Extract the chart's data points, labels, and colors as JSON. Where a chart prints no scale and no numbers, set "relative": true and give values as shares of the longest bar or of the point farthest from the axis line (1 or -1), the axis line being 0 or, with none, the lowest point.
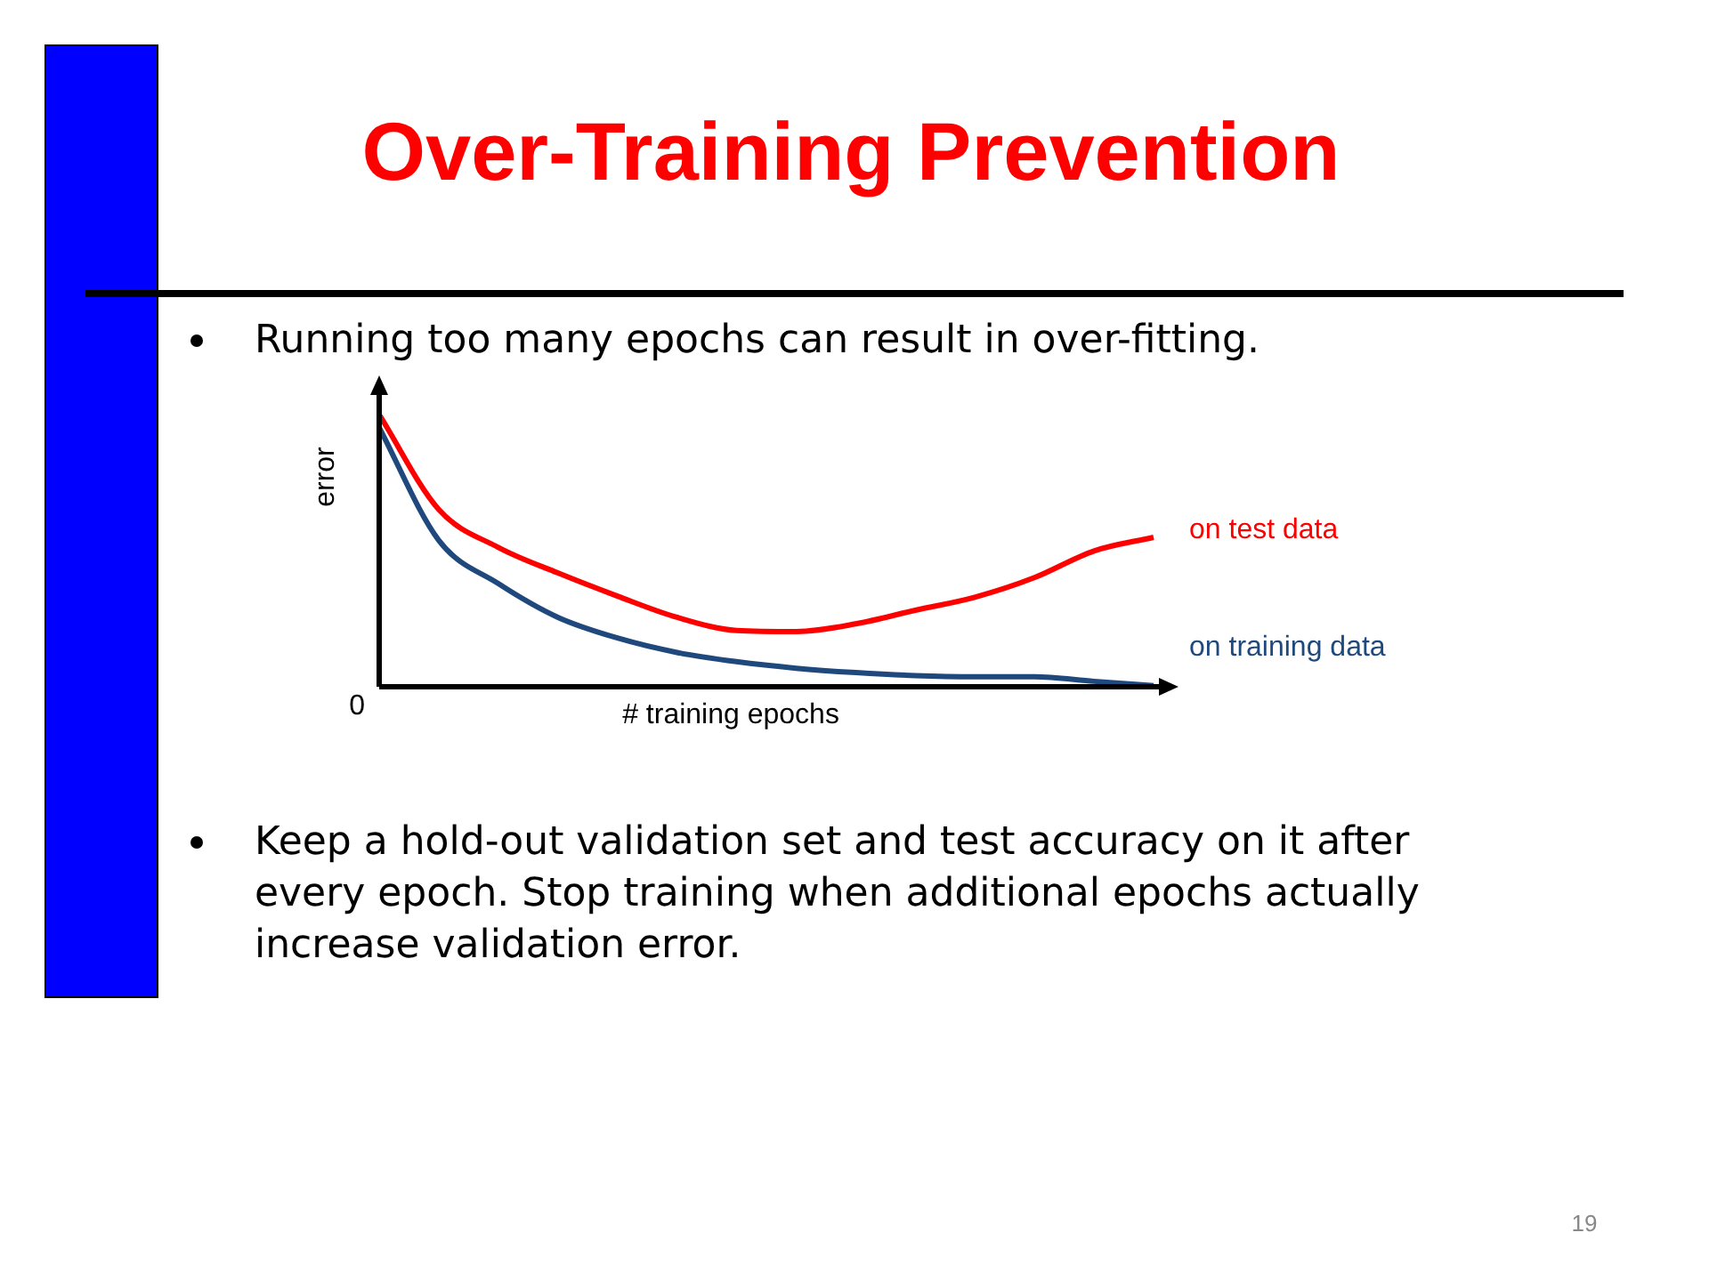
{
  "chart_data": {
    "type": "line",
    "title": "Over-Training Prevention",
    "xlabel": "# training epochs",
    "ylabel": "error",
    "relative": true,
    "legend": false,
    "marker": "none",
    "line_style": "solid",
    "categories": [
      null,
      null,
      null,
      null,
      null,
      null,
      null,
      null,
      null,
      null,
      null,
      null,
      null,
      null
    ],
    "series": [
      {
        "name": "on test data",
        "color": "#ff0000",
        "values": [
          1.0,
          0.651,
          0.512,
          0.418,
          0.333,
          0.255,
          0.207,
          0.203,
          0.231,
          0.281,
          0.329,
          0.401,
          0.499,
          0.549
        ]
      },
      {
        "name": "on training data",
        "color": "#1f497d",
        "values": [
          0.952,
          0.538,
          0.379,
          0.255,
          0.179,
          0.126,
          0.092,
          0.068,
          0.052,
          0.041,
          0.037,
          0.037,
          0.02,
          0.004
        ]
      }
    ],
    "annotations": [
      "Running too many epochs can result in over-fitting.",
      "Keep a hold-out validation set and test accuracy on it after every epoch. Stop training when additional epochs actually increase validation error.",
      "0",
      "19"
    ]
  }
}
